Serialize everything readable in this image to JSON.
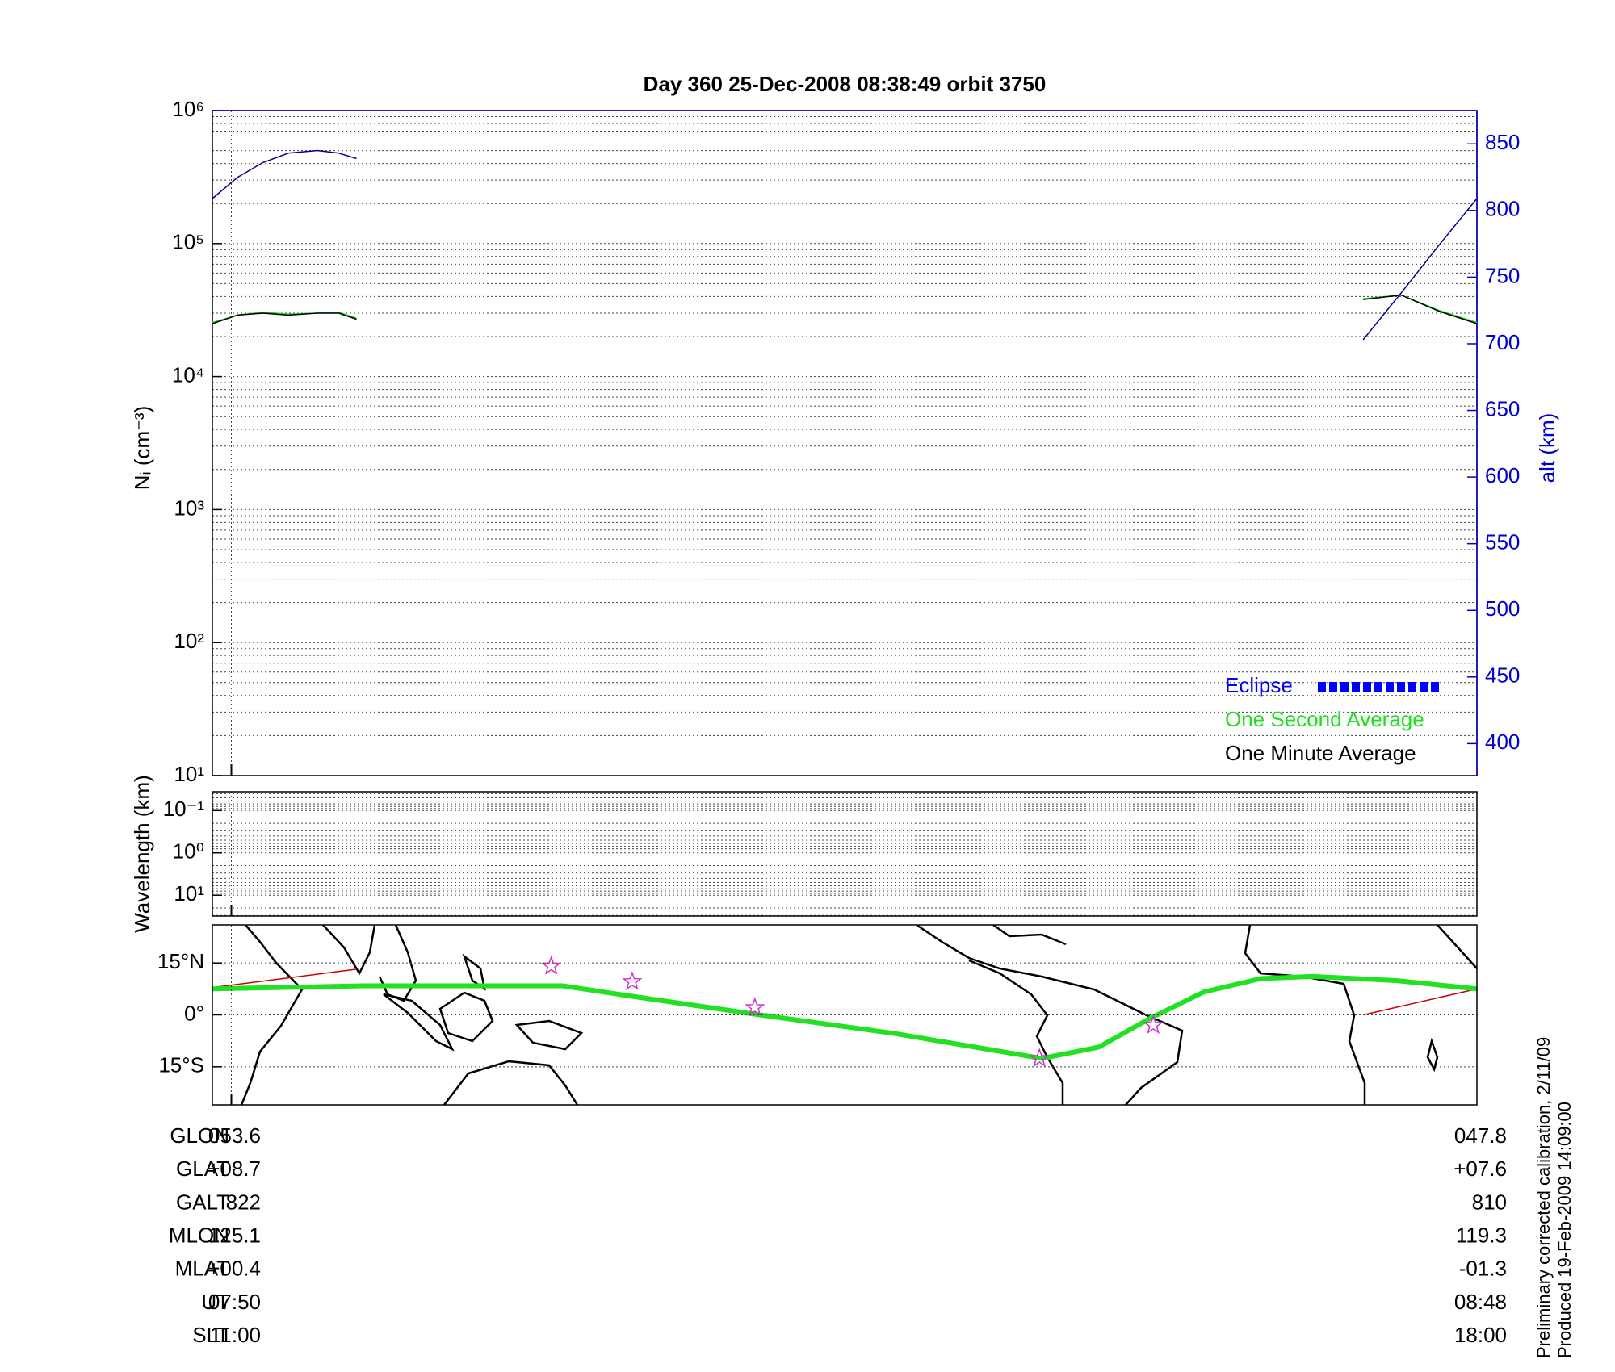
{
  "chart_data": [
    {
      "type": "line",
      "title": "Day 360  25-Dec-2008 08:38:49   orbit 3750",
      "ylabel": "Nᵢ (cm⁻³)",
      "y2label": "alt (km)",
      "ylog": true,
      "ylim": [
        10,
        1000000
      ],
      "yticks": [
        {
          "value": 10,
          "label": "10¹"
        },
        {
          "value": 100,
          "label": "10²"
        },
        {
          "value": 1000,
          "label": "10³"
        },
        {
          "value": 10000,
          "label": "10⁴"
        },
        {
          "value": 100000,
          "label": "10⁵"
        },
        {
          "value": 1000000,
          "label": "10⁶"
        }
      ],
      "y2lim": [
        376,
        875
      ],
      "y2ticks": [
        400,
        450,
        500,
        550,
        600,
        650,
        700,
        750,
        800,
        850
      ],
      "y2color": "#0000cc",
      "xlim": [
        0,
        1
      ],
      "xticks": [
        0.015
      ],
      "grid": true,
      "minor_grid": true,
      "legend_position": "lower right",
      "x": [
        0,
        0.02,
        0.04,
        0.06,
        0.083,
        0.1,
        0.114,
        0.5,
        0.91,
        0.94,
        0.97,
        1.0
      ],
      "series": [
        {
          "name": "Eclipse",
          "color": "#0000ff",
          "style": "squares",
          "values": [
            null,
            null,
            null,
            null,
            null,
            null,
            null,
            null,
            null,
            null,
            null,
            null
          ]
        },
        {
          "name": "One Second Average",
          "color": "#22dd22",
          "values": [
            25500,
            29000,
            30500,
            29500,
            30000,
            30500,
            27500,
            null,
            38500,
            41000,
            31500,
            25500
          ]
        },
        {
          "name": "One Minute Average",
          "color": "#000000",
          "values": [
            25000,
            29000,
            30000,
            29000,
            30000,
            30000,
            27000,
            null,
            38000,
            41000,
            31000,
            25000
          ]
        },
        {
          "color": "#00008b",
          "axis": "y2",
          "values": [
            809,
            825,
            836,
            843,
            845,
            843,
            839,
            null,
            703,
            738,
            774,
            809
          ]
        }
      ]
    },
    {
      "type": "line",
      "ylabel": "Wavelength (km)",
      "ylog": true,
      "ylim": [
        31,
        0.036
      ],
      "yticks": [
        {
          "value": 0.1,
          "label": "10⁻¹"
        },
        {
          "value": 1,
          "label": "10⁰"
        },
        {
          "value": 10,
          "label": "10¹"
        }
      ],
      "xlim": [
        0,
        1
      ],
      "xticks": [
        0.015
      ],
      "grid": true,
      "minor_grid": true
    },
    {
      "type": "line",
      "ylim": [
        -26,
        26
      ],
      "yticks": [
        {
          "value": 15,
          "label": "15°N"
        },
        {
          "value": 0,
          "label": "0°"
        },
        {
          "value": -15,
          "label": "15°S"
        }
      ],
      "xlim": [
        0,
        1
      ],
      "xticks": [
        0.015
      ],
      "grid": true,
      "series": [
        {
          "color": "#cc0000",
          "x": [
            0,
            0.114,
            0.5,
            0.91,
            1.0
          ],
          "values": [
            7.9,
            13.2,
            null,
            0,
            7.5
          ]
        },
        {
          "color": "#22e022",
          "line_width": 6,
          "x": [
            0,
            0.12,
            0.277,
            0.326,
            0.433,
            0.54,
            0.656,
            0.701,
            0.742,
            0.784,
            0.829,
            0.87,
            0.936,
            1.0
          ],
          "values": [
            7.5,
            8.4,
            8.4,
            5.7,
            0,
            -5.4,
            -12.6,
            -9.3,
            -0.9,
            6.6,
            10.5,
            11.1,
            9.9,
            7.5
          ]
        },
        {
          "color": "#cc33cc",
          "marker": "star",
          "x": [
            0.268,
            0.332,
            0.429,
            0.654,
            0.744
          ],
          "values": [
            14.1,
            9.6,
            2.1,
            -12.6,
            -3.0
          ]
        }
      ]
    }
  ],
  "annotations": {
    "rows": [
      {
        "label": "GLON",
        "start": "053.6",
        "end": "047.8"
      },
      {
        "label": "GLAT",
        "start": "+08.7",
        "end": "+07.6"
      },
      {
        "label": "GALT",
        "start": "822",
        "end": "810"
      },
      {
        "label": "MLON",
        "start": "125.1",
        "end": "119.3"
      },
      {
        "label": "MLAT",
        "start": "+00.4",
        "end": "-01.3"
      },
      {
        "label": "UT",
        "start": "07:50",
        "end": "08:48"
      },
      {
        "label": "SLT",
        "start": "11:00",
        "end": "18:00"
      }
    ],
    "notes": [
      "Preliminary corrected calibration, 2/11/09",
      "Produced 19-Feb-2009 14:09:00"
    ]
  }
}
